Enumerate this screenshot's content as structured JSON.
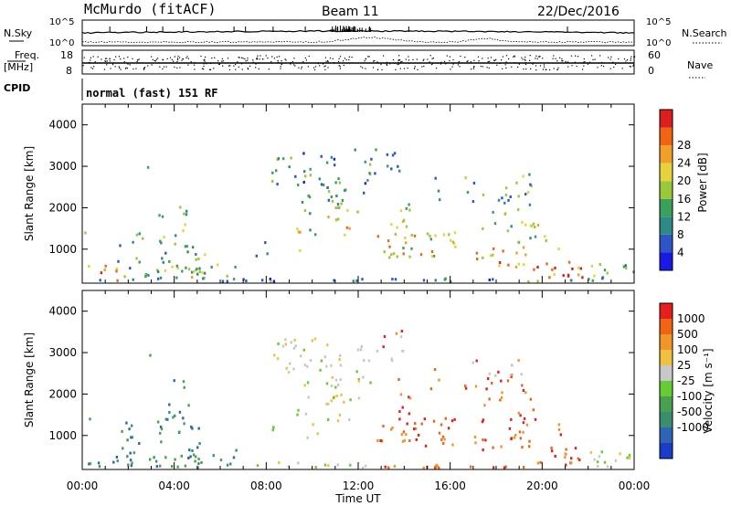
{
  "header": {
    "station": "McMurdo (fitACF)",
    "beam": "Beam 11",
    "date": "22/Dec/2016"
  },
  "top_panels": {
    "nsky_label": "N.Sky",
    "nsky_ticks": [
      "10^5",
      "10^0"
    ],
    "nsearch_label": "N.Search",
    "nsearch_ticks": [
      "10^5",
      "10^0"
    ],
    "freq_label_1": "Freq.",
    "freq_label_2": "[MHz]",
    "freq_ticks": [
      "18",
      "8"
    ],
    "nave_label": "Nave",
    "nave_ticks": [
      "60",
      "0"
    ],
    "cpid_label": "CPID",
    "cpid_text": "normal (fast) 151 RF"
  },
  "chart_data": [
    {
      "type": "heatmap",
      "name": "power-panel",
      "xlabel": "",
      "ylabel": "Slant Range [km]",
      "xlim": [
        0,
        24
      ],
      "ylim": [
        180,
        4500
      ],
      "y_ticks": [
        "1000",
        "2000",
        "3000",
        "4000"
      ],
      "colorbar": {
        "label": "Power [dB]",
        "ticks": [
          "4",
          "8",
          "12",
          "16",
          "20",
          "24",
          "28"
        ],
        "colors": [
          "#1a1ae6",
          "#2e55c8",
          "#2e8a86",
          "#3aa05c",
          "#99c83a",
          "#e6d23a",
          "#f0a028",
          "#f06414",
          "#dc1e1e"
        ]
      }
    },
    {
      "type": "heatmap",
      "name": "velocity-panel",
      "xlabel": "Time UT",
      "ylabel": "Slant Range [km]",
      "xlim": [
        0,
        24
      ],
      "ylim": [
        180,
        4500
      ],
      "y_ticks": [
        "1000",
        "2000",
        "3000",
        "4000"
      ],
      "x_ticks": [
        "00:00",
        "04:00",
        "08:00",
        "12:00",
        "16:00",
        "20:00",
        "00:00"
      ],
      "colorbar": {
        "label": "Velocity [m s⁻¹]",
        "ticks": [
          "1000",
          "500",
          "100",
          "25",
          "-25",
          "-100",
          "-500",
          "-1000"
        ],
        "colors": [
          "#1a3cc8",
          "#2e64b4",
          "#3c8c6e",
          "#4aa050",
          "#66cc33",
          "#c8c8c8",
          "#f0c040",
          "#f09628",
          "#f06414",
          "#e61e1e"
        ]
      }
    }
  ],
  "colors": {
    "axis": "#000000",
    "background": "#ffffff"
  }
}
